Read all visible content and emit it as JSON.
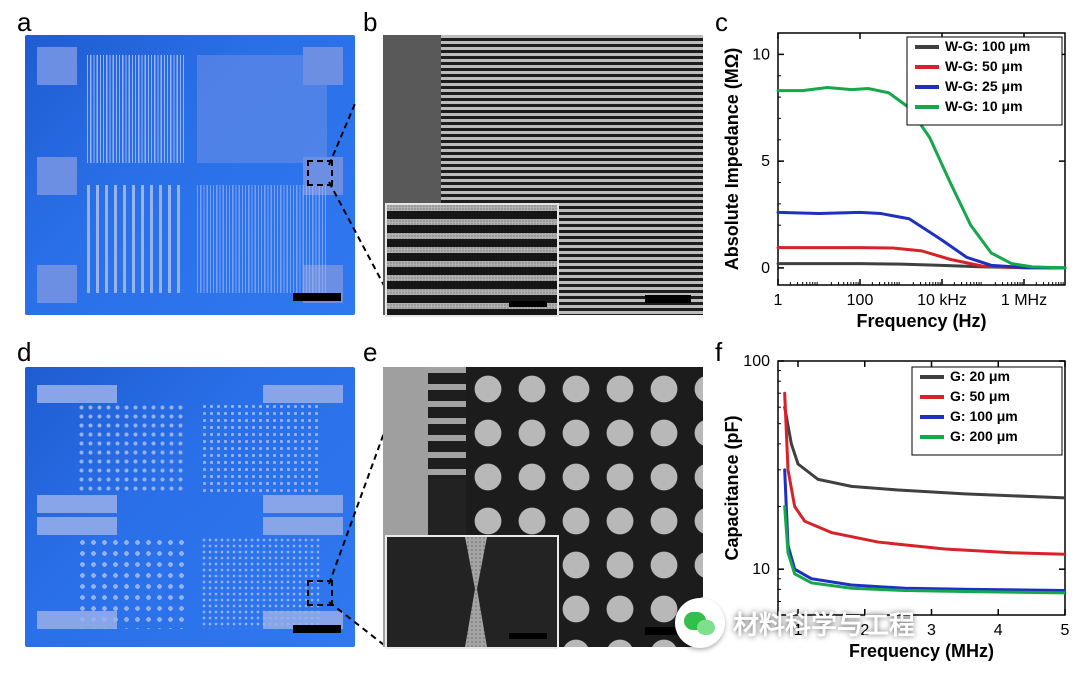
{
  "labels": {
    "a": "a",
    "b": "b",
    "c": "c",
    "d": "d",
    "e": "e",
    "f": "f"
  },
  "watermark": "材料科学与工程",
  "colors": {
    "series_gray": "#404040",
    "series_red": "#d62228",
    "series_blue": "#1f2fbf",
    "series_green": "#13a84a",
    "axis": "#000000"
  },
  "panel_c": {
    "type": "line",
    "title": "",
    "xlabel": "Frequency (Hz)",
    "ylabel": "Absolute Impedance (MΩ)",
    "xscale": "log",
    "x_ticks_labels": [
      "1",
      "100",
      "10 kHz",
      "1 MHz"
    ],
    "x_ticks_pow": [
      0,
      2,
      4,
      6
    ],
    "x_pow_min": 0,
    "x_pow_max": 7,
    "ylim": [
      -0.8,
      11
    ],
    "y_ticks": [
      0,
      5,
      10
    ],
    "legend": [
      {
        "label": "W-G: 100 μm",
        "color": "#404040"
      },
      {
        "label": "W-G: 50 μm",
        "color": "#d62228"
      },
      {
        "label": "W-G: 25 μm",
        "color": "#1f2fbf"
      },
      {
        "label": "W-G: 10 μm",
        "color": "#13a84a"
      }
    ],
    "series": {
      "gray": {
        "color": "#404040",
        "pts": [
          [
            0,
            0.2
          ],
          [
            1,
            0.2
          ],
          [
            2,
            0.2
          ],
          [
            3,
            0.18
          ],
          [
            4,
            0.12
          ],
          [
            5,
            0.05
          ],
          [
            6,
            0.01
          ],
          [
            7,
            0.0
          ]
        ]
      },
      "red": {
        "color": "#d62228",
        "pts": [
          [
            0,
            0.95
          ],
          [
            1,
            0.95
          ],
          [
            2,
            0.95
          ],
          [
            2.8,
            0.93
          ],
          [
            3.5,
            0.8
          ],
          [
            4.2,
            0.4
          ],
          [
            5,
            0.08
          ],
          [
            6,
            0.01
          ],
          [
            7,
            0.0
          ]
        ]
      },
      "blue": {
        "color": "#1f2fbf",
        "pts": [
          [
            0,
            2.6
          ],
          [
            1,
            2.55
          ],
          [
            2,
            2.6
          ],
          [
            2.5,
            2.55
          ],
          [
            3.2,
            2.3
          ],
          [
            4.0,
            1.3
          ],
          [
            4.6,
            0.5
          ],
          [
            5.2,
            0.12
          ],
          [
            6,
            0.02
          ],
          [
            7,
            0.0
          ]
        ]
      },
      "green": {
        "color": "#13a84a",
        "pts": [
          [
            0,
            8.3
          ],
          [
            0.6,
            8.3
          ],
          [
            1.2,
            8.45
          ],
          [
            1.8,
            8.35
          ],
          [
            2.2,
            8.4
          ],
          [
            2.7,
            8.2
          ],
          [
            3.2,
            7.5
          ],
          [
            3.7,
            6.1
          ],
          [
            4.2,
            4.0
          ],
          [
            4.7,
            2.0
          ],
          [
            5.2,
            0.7
          ],
          [
            5.7,
            0.2
          ],
          [
            6.2,
            0.05
          ],
          [
            7,
            0.0
          ]
        ]
      }
    },
    "line_width": 3
  },
  "panel_f": {
    "type": "line",
    "xlabel": "Frequency (MHz)",
    "ylabel": "Capacitance (pF)",
    "yscale": "log",
    "xlim": [
      0.7,
      5
    ],
    "x_ticks": [
      1,
      2,
      3,
      4,
      5
    ],
    "y_pow_min": 0.78,
    "y_pow_max": 2.0,
    "y_ticks": [
      10,
      100
    ],
    "legend": [
      {
        "label": "G: 20 μm",
        "color": "#404040"
      },
      {
        "label": "G: 50 μm",
        "color": "#d62228"
      },
      {
        "label": "G: 100 μm",
        "color": "#1f2fbf"
      },
      {
        "label": "G: 200 μm",
        "color": "#13a84a"
      }
    ],
    "series": {
      "gray": {
        "color": "#404040",
        "pts": [
          [
            0.8,
            60
          ],
          [
            0.9,
            40
          ],
          [
            1.0,
            32
          ],
          [
            1.3,
            27
          ],
          [
            1.8,
            25
          ],
          [
            2.5,
            24
          ],
          [
            3.5,
            23
          ],
          [
            5.0,
            22
          ]
        ]
      },
      "red": {
        "color": "#d62228",
        "pts": [
          [
            0.8,
            70
          ],
          [
            0.85,
            30
          ],
          [
            0.95,
            20
          ],
          [
            1.1,
            17
          ],
          [
            1.5,
            15
          ],
          [
            2.2,
            13.5
          ],
          [
            3.2,
            12.5
          ],
          [
            4.2,
            12.0
          ],
          [
            5.0,
            11.8
          ]
        ]
      },
      "blue": {
        "color": "#1f2fbf",
        "pts": [
          [
            0.8,
            30
          ],
          [
            0.85,
            13
          ],
          [
            0.95,
            10
          ],
          [
            1.2,
            9.0
          ],
          [
            1.8,
            8.4
          ],
          [
            2.6,
            8.1
          ],
          [
            3.6,
            8.0
          ],
          [
            5.0,
            7.9
          ]
        ]
      },
      "green": {
        "color": "#13a84a",
        "pts": [
          [
            0.8,
            20
          ],
          [
            0.85,
            12
          ],
          [
            0.95,
            9.5
          ],
          [
            1.2,
            8.6
          ],
          [
            1.8,
            8.1
          ],
          [
            2.6,
            7.9
          ],
          [
            3.6,
            7.8
          ],
          [
            5.0,
            7.7
          ]
        ]
      }
    },
    "line_width": 3
  }
}
